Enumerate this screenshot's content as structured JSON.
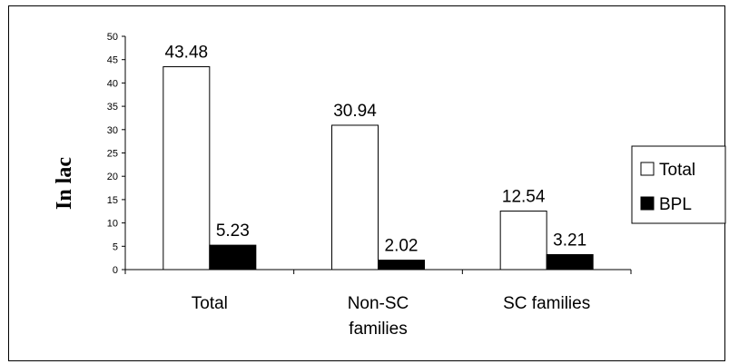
{
  "chart_data": {
    "type": "bar",
    "categories": [
      "Total",
      "Non-SC families",
      "SC families"
    ],
    "category_label_lines": [
      [
        "Total"
      ],
      [
        "Non-SC",
        "families"
      ],
      [
        "SC families"
      ]
    ],
    "series": [
      {
        "name": "Total",
        "values": [
          43.48,
          30.94,
          12.54
        ],
        "color": "#ffffff"
      },
      {
        "name": "BPL",
        "values": [
          5.23,
          2.02,
          3.21
        ],
        "color": "#000000"
      }
    ],
    "data_labels": [
      [
        "43.48",
        "30.94",
        "12.54"
      ],
      [
        "5.23",
        "2.02",
        "3.21"
      ]
    ],
    "ylabel": "In lac",
    "xlabel": "",
    "ylim": [
      0,
      50
    ],
    "yticks": [
      0,
      5,
      10,
      15,
      20,
      25,
      30,
      35,
      40,
      45,
      50
    ],
    "grid": false,
    "legend_position": "right"
  }
}
